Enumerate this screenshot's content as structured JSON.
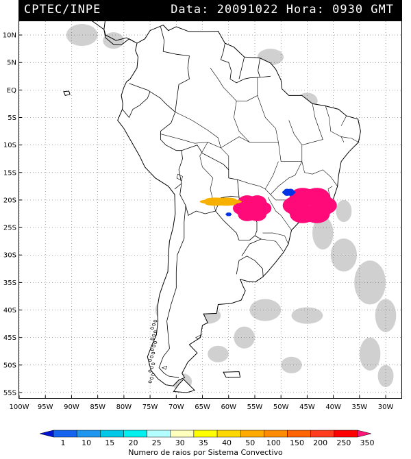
{
  "header": {
    "agency": "CPTEC/INPE",
    "datetime": "Data: 20091022 Hora: 0930 GMT"
  },
  "map": {
    "lat_labels": [
      "10N",
      "5N",
      "EQ",
      "5S",
      "10S",
      "15S",
      "20S",
      "25S",
      "30S",
      "35S",
      "40S",
      "45S",
      "50S",
      "55S"
    ],
    "lat_values": [
      10,
      5,
      0,
      -5,
      -10,
      -15,
      -20,
      -25,
      -30,
      -35,
      -40,
      -45,
      -50,
      -55
    ],
    "lon_labels": [
      "100W",
      "95W",
      "90W",
      "85W",
      "80W",
      "75W",
      "70W",
      "65W",
      "60W",
      "55W",
      "50W",
      "45W",
      "40W",
      "35W",
      "30W"
    ],
    "lon_values": [
      -100,
      -95,
      -90,
      -85,
      -80,
      -75,
      -70,
      -65,
      -60,
      -55,
      -50,
      -45,
      -40,
      -35,
      -30
    ],
    "extent": {
      "lon_min": -100,
      "lon_max": -27,
      "lat_min": -56,
      "lat_max": 12.5
    },
    "grid": true,
    "cloud_color": "#c8c8c8",
    "coast_color": "#000000"
  },
  "lightning_clusters": [
    {
      "lon": -44.5,
      "lat": -21.0,
      "rx": 4.5,
      "ry": 3.0,
      "color": "#ff0a78",
      "category": "350"
    },
    {
      "lon": -55.5,
      "lat": -21.5,
      "rx": 3.2,
      "ry": 2.2,
      "color": "#ff0a78",
      "category": "350"
    },
    {
      "lon": -61.5,
      "lat": -20.3,
      "rx": 3.5,
      "ry": 0.7,
      "color": "#f7b000",
      "category": "50"
    },
    {
      "lon": -48.5,
      "lat": -18.6,
      "rx": 1.1,
      "ry": 0.6,
      "color": "#0032e6",
      "category": "1"
    },
    {
      "lon": -60.0,
      "lat": -22.6,
      "rx": 0.5,
      "ry": 0.3,
      "color": "#0032e6",
      "category": "1"
    }
  ],
  "colorbar": {
    "ticks": [
      "1",
      "10",
      "15",
      "20",
      "25",
      "30",
      "35",
      "40",
      "50",
      "100",
      "150",
      "200",
      "250",
      "350"
    ],
    "colors": [
      "#0014d2",
      "#1464f0",
      "#1e96f0",
      "#00c8e6",
      "#00f0f0",
      "#b4ffff",
      "#ffffbe",
      "#ffff00",
      "#ffd700",
      "#ffaa00",
      "#ff8c00",
      "#ff6400",
      "#ff3c1e",
      "#ff0000",
      "#ff1478"
    ],
    "caption": "Numero de raios por Sistema Convectivo"
  }
}
